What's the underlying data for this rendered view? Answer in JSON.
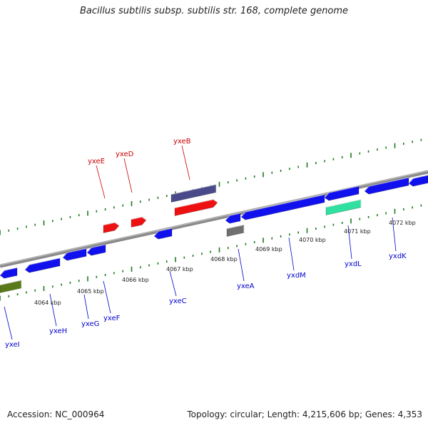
{
  "title": "Bacillus subtilis subsp. subtilis str. 168, complete genome",
  "footer": {
    "accession": "Accession: NC_000964",
    "stats": "Topology: circular; Length: 4,215,606 bp; Genes: 4,353"
  },
  "colors": {
    "backbone": "#888888",
    "tick": "#1a7a1a",
    "forward_gene": "#ee1111",
    "reverse_gene": "#1111ee",
    "forward_label": "#cc0000",
    "reverse_label": "#0000cc"
  },
  "scale_labels": [
    "4064 kbp",
    "4065 kbp",
    "4066 kbp",
    "4067 kbp",
    "4068 kbp",
    "4069 kbp",
    "4070 kbp",
    "4071 kbp",
    "4072 kbp"
  ],
  "forward_genes": [
    "yxeE",
    "yxeD",
    "yxeB"
  ],
  "reverse_genes": [
    "yxeI",
    "yxeH",
    "yxeG",
    "yxeF",
    "yxeC",
    "yxeA",
    "yxdM",
    "yxdL",
    "yxdK"
  ]
}
